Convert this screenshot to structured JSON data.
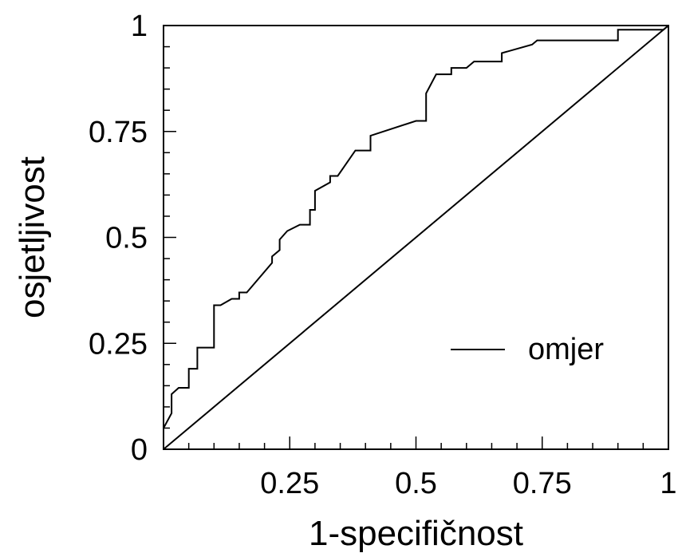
{
  "chart_data": {
    "type": "line",
    "xlabel": "1-specifičnost",
    "ylabel": "osjetljivost",
    "xlim": [
      0,
      1
    ],
    "ylim": [
      0,
      1
    ],
    "x_ticks": [
      {
        "value": 0.25,
        "label": "0.25"
      },
      {
        "value": 0.5,
        "label": "0.5"
      },
      {
        "value": 0.75,
        "label": "0.75"
      },
      {
        "value": 1,
        "label": "1"
      }
    ],
    "y_ticks": [
      {
        "value": 0,
        "label": "0"
      },
      {
        "value": 0.25,
        "label": "0.25"
      },
      {
        "value": 0.5,
        "label": "0.5"
      },
      {
        "value": 0.75,
        "label": "0.75"
      },
      {
        "value": 1,
        "label": "1"
      }
    ],
    "x_minor_step": 0.05,
    "y_minor_step": 0.05,
    "grid": false,
    "legend": {
      "position": "bottom-right",
      "entries": [
        "omjer"
      ]
    },
    "series": [
      {
        "name": "omjer",
        "color": "#000000",
        "points": [
          [
            0.0,
            0.05
          ],
          [
            0.016,
            0.085
          ],
          [
            0.016,
            0.13
          ],
          [
            0.03,
            0.145
          ],
          [
            0.05,
            0.145
          ],
          [
            0.05,
            0.19
          ],
          [
            0.067,
            0.19
          ],
          [
            0.067,
            0.24
          ],
          [
            0.1,
            0.24
          ],
          [
            0.1,
            0.34
          ],
          [
            0.113,
            0.34
          ],
          [
            0.135,
            0.355
          ],
          [
            0.15,
            0.355
          ],
          [
            0.15,
            0.37
          ],
          [
            0.165,
            0.37
          ],
          [
            0.215,
            0.44
          ],
          [
            0.215,
            0.455
          ],
          [
            0.23,
            0.47
          ],
          [
            0.23,
            0.495
          ],
          [
            0.245,
            0.515
          ],
          [
            0.27,
            0.53
          ],
          [
            0.29,
            0.53
          ],
          [
            0.29,
            0.565
          ],
          [
            0.3,
            0.565
          ],
          [
            0.3,
            0.61
          ],
          [
            0.33,
            0.63
          ],
          [
            0.33,
            0.645
          ],
          [
            0.345,
            0.645
          ],
          [
            0.38,
            0.705
          ],
          [
            0.41,
            0.705
          ],
          [
            0.41,
            0.74
          ],
          [
            0.5,
            0.775
          ],
          [
            0.52,
            0.775
          ],
          [
            0.52,
            0.84
          ],
          [
            0.54,
            0.885
          ],
          [
            0.57,
            0.885
          ],
          [
            0.57,
            0.9
          ],
          [
            0.6,
            0.9
          ],
          [
            0.615,
            0.915
          ],
          [
            0.67,
            0.915
          ],
          [
            0.67,
            0.935
          ],
          [
            0.7,
            0.945
          ],
          [
            0.73,
            0.955
          ],
          [
            0.74,
            0.965
          ],
          [
            0.9,
            0.965
          ],
          [
            0.9,
            0.99
          ],
          [
            0.99,
            0.99
          ],
          [
            1.0,
            1.0
          ]
        ]
      },
      {
        "name": "",
        "color": "#000000",
        "points": [
          [
            0,
            0
          ],
          [
            1,
            1
          ]
        ]
      }
    ]
  }
}
